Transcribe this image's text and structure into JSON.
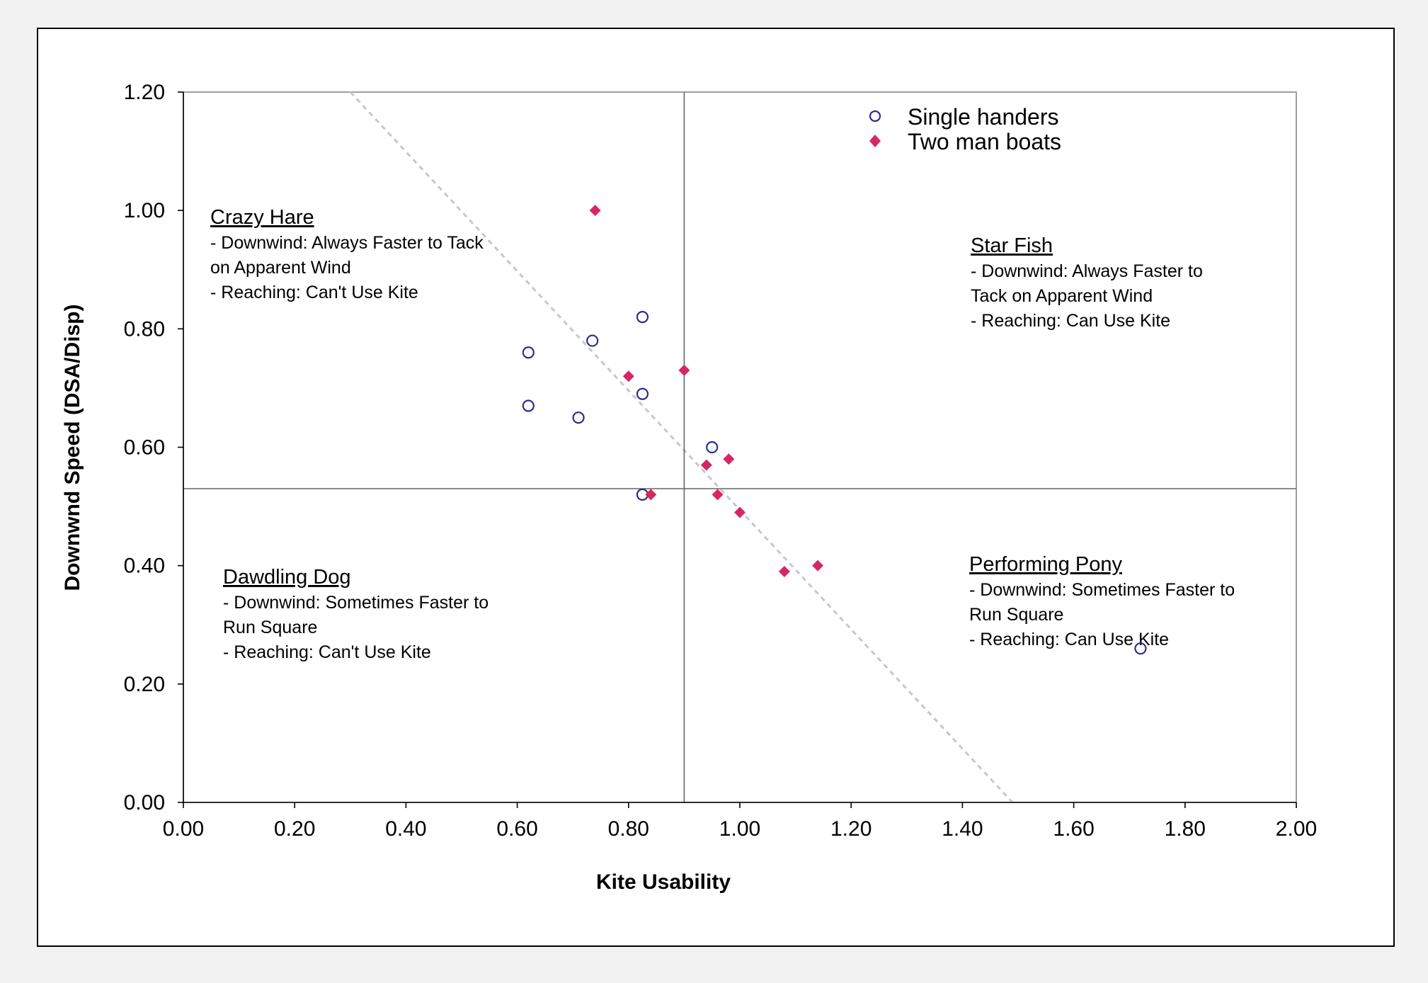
{
  "chart_data": {
    "type": "scatter",
    "xlabel": "Kite Usability",
    "ylabel": "Downwnd Speed (DSA/Disp)",
    "xlim": [
      0,
      2
    ],
    "ylim": [
      0,
      1.2
    ],
    "x_ticks": [
      "0.00",
      "0.20",
      "0.40",
      "0.60",
      "0.80",
      "1.00",
      "1.20",
      "1.40",
      "1.60",
      "1.80",
      "2.00"
    ],
    "y_ticks": [
      "0.00",
      "0.20",
      "0.40",
      "0.60",
      "0.80",
      "1.00",
      "1.20"
    ],
    "grid": false,
    "legend_position": "top-center",
    "reference_lines": {
      "vertical_x": 0.9,
      "horizontal_y": 0.53
    },
    "trend_line": {
      "from": [
        0.3,
        1.2
      ],
      "to": [
        1.49,
        0.0
      ],
      "color": "#c8c8c8",
      "style": "dashed"
    },
    "series": [
      {
        "name": "Single handers",
        "marker": "hollow-circle",
        "color": "#2e2e8c",
        "points": [
          [
            0.62,
            0.76
          ],
          [
            0.62,
            0.67
          ],
          [
            0.71,
            0.65
          ],
          [
            0.735,
            0.78
          ],
          [
            0.825,
            0.82
          ],
          [
            0.825,
            0.69
          ],
          [
            0.825,
            0.52
          ],
          [
            0.95,
            0.6
          ],
          [
            1.72,
            0.26
          ]
        ]
      },
      {
        "name": "Two man boats",
        "marker": "filled-diamond",
        "color": "#d6275f",
        "points": [
          [
            0.74,
            1.0
          ],
          [
            0.8,
            0.72
          ],
          [
            0.9,
            0.73
          ],
          [
            0.94,
            0.57
          ],
          [
            0.98,
            0.58
          ],
          [
            0.84,
            0.52
          ],
          [
            0.96,
            0.52
          ],
          [
            1.0,
            0.49
          ],
          [
            1.08,
            0.39
          ],
          [
            1.14,
            0.4
          ]
        ]
      }
    ],
    "annotations": [
      {
        "title": "Crazy Hare",
        "lines": [
          "- Downwind: Always Faster to Tack",
          "on Apparent  Wind",
          "- Reaching: Can't Use Kite"
        ]
      },
      {
        "title": "Star Fish",
        "lines": [
          "- Downwind: Always Faster to",
          "Tack on Apparent  Wind",
          "- Reaching: Can Use Kite"
        ]
      },
      {
        "title": "Dawdling Dog",
        "lines": [
          "- Downwind: Sometimes Faster to",
          "Run Square",
          "- Reaching: Can't Use Kite"
        ]
      },
      {
        "title": "Performing Pony",
        "lines": [
          "- Downwind: Sometimes Faster to",
          "Run Square",
          "- Reaching: Can Use Kite"
        ]
      }
    ]
  }
}
